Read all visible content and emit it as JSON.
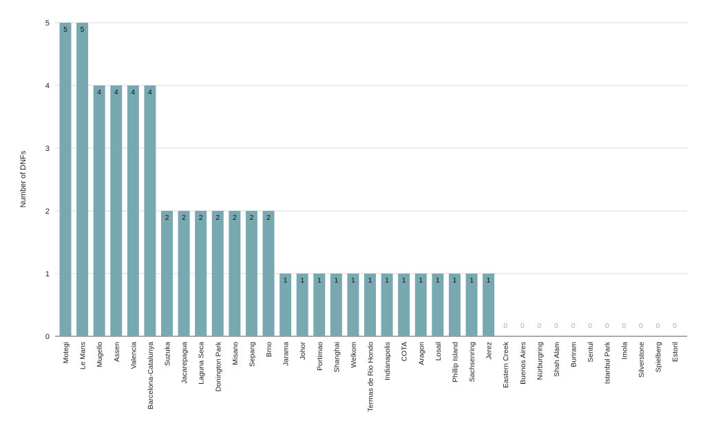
{
  "chart_data": {
    "type": "bar",
    "title": "",
    "xlabel": "",
    "ylabel": "Number of DNFs",
    "ylim": [
      0,
      5
    ],
    "yticks": [
      "0",
      "1",
      "2",
      "3",
      "4",
      "5"
    ],
    "grid": true,
    "bar_color": "#78a8b0",
    "zero_label_color": "#8fb8c0",
    "categories": [
      "Motegi",
      "Le Mans",
      "Mugello",
      "Assen",
      "Valencia",
      "Barcelona-Catalunya",
      "Suzuka",
      "Jacarepagua",
      "Laguna Seca",
      "Donington Park",
      "Misano",
      "Sepang",
      "Brno",
      "Jarama",
      "Johor",
      "Portimao",
      "Shanghai",
      "Welkom",
      "Termas de Rio Hondo",
      "Indianapolis",
      "COTA",
      "Aragon",
      "Losail",
      "Phillip Island",
      "Sachsenring",
      "Jerez",
      "Eastern Creek",
      "Buenos Aires",
      "Nürburgring",
      "Shah Alam",
      "Buriram",
      "Sentul",
      "Istanbul Park",
      "Imola",
      "Silverstone",
      "Spielberg",
      "Estoril"
    ],
    "values": [
      5,
      5,
      4,
      4,
      4,
      4,
      2,
      2,
      2,
      2,
      2,
      2,
      2,
      1,
      1,
      1,
      1,
      1,
      1,
      1,
      1,
      1,
      1,
      1,
      1,
      1,
      0,
      0,
      0,
      0,
      0,
      0,
      0,
      0,
      0,
      0,
      0
    ]
  }
}
